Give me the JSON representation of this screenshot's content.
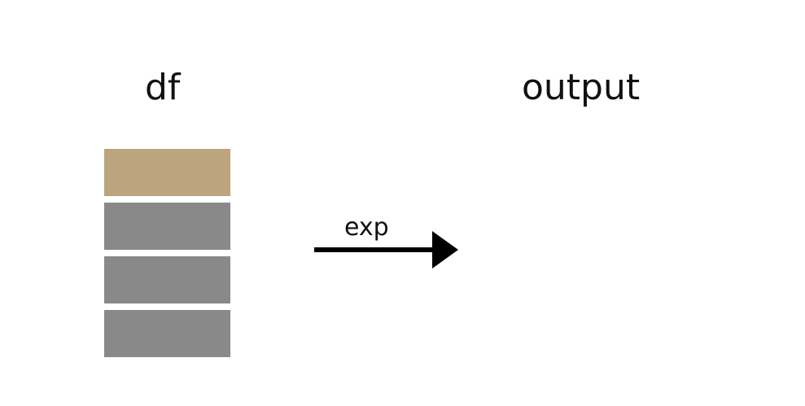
{
  "diagram": {
    "input_label": "df",
    "output_label": "output",
    "operation_label": "exp",
    "rows": [
      {
        "kind": "highlighted",
        "color": "#bca47f"
      },
      {
        "kind": "normal",
        "color": "#898989"
      },
      {
        "kind": "normal",
        "color": "#898989"
      },
      {
        "kind": "normal",
        "color": "#898989"
      }
    ],
    "arrow_color": "#000000"
  }
}
